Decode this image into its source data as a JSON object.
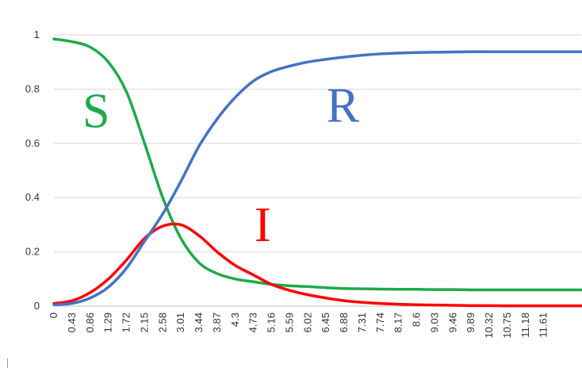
{
  "chart_data": {
    "type": "line",
    "title": "",
    "xlabel": "",
    "ylabel": "",
    "ylim": [
      0,
      1
    ],
    "y_ticks": [
      "0",
      "0.2",
      "0.4",
      "0.6",
      "0.8",
      "1"
    ],
    "x_ticks": [
      "0",
      "0.43",
      "0.86",
      "1.29",
      "1.72",
      "2.15",
      "2.58",
      "3.01",
      "3.44",
      "3.87",
      "4.3",
      "4.73",
      "5.16",
      "5.59",
      "6.02",
      "6.45",
      "6.88",
      "7.31",
      "7.74",
      "8.17",
      "8.6",
      "9.03",
      "9.46",
      "9.89",
      "10.32",
      "10.75",
      "11.18",
      "11.61"
    ],
    "x_range": [
      0,
      12.5
    ],
    "grid": true,
    "legend": "none",
    "x": [
      0,
      0.43,
      0.86,
      1.29,
      1.72,
      2.15,
      2.58,
      3.01,
      3.44,
      3.87,
      4.3,
      4.73,
      5.16,
      5.59,
      6.02,
      6.45,
      6.88,
      7.31,
      7.74,
      8.17,
      8.6,
      9.03,
      9.46,
      9.89,
      10.32,
      10.75,
      11.18,
      11.61,
      12.04,
      12.5
    ],
    "series": [
      {
        "name": "S",
        "color": "#1fa94a",
        "values": [
          0.985,
          0.975,
          0.955,
          0.9,
          0.79,
          0.6,
          0.4,
          0.25,
          0.16,
          0.12,
          0.1,
          0.09,
          0.08,
          0.075,
          0.072,
          0.068,
          0.065,
          0.064,
          0.063,
          0.062,
          0.062,
          0.061,
          0.061,
          0.06,
          0.06,
          0.06,
          0.06,
          0.06,
          0.06,
          0.06
        ]
      },
      {
        "name": "I",
        "color": "#ff0000",
        "values": [
          0.01,
          0.02,
          0.05,
          0.1,
          0.17,
          0.25,
          0.295,
          0.3,
          0.26,
          0.2,
          0.15,
          0.115,
          0.08,
          0.058,
          0.042,
          0.03,
          0.02,
          0.014,
          0.01,
          0.007,
          0.005,
          0.004,
          0.003,
          0.002,
          0.002,
          0.001,
          0.001,
          0.001,
          0.001,
          0.001
        ]
      },
      {
        "name": "R",
        "color": "#4472c4",
        "values": [
          0.005,
          0.01,
          0.03,
          0.07,
          0.14,
          0.24,
          0.34,
          0.46,
          0.59,
          0.69,
          0.77,
          0.83,
          0.865,
          0.885,
          0.9,
          0.91,
          0.918,
          0.925,
          0.93,
          0.933,
          0.935,
          0.936,
          0.937,
          0.938,
          0.938,
          0.938,
          0.938,
          0.938,
          0.938,
          0.938
        ]
      }
    ],
    "annotations": [
      {
        "text": "S",
        "x": 1.0,
        "y": 0.66,
        "color": "#1fa94a"
      },
      {
        "text": "R",
        "x": 6.85,
        "y": 0.68,
        "color": "#4472c4"
      },
      {
        "text": "I",
        "x": 4.95,
        "y": 0.24,
        "color": "#ff0000"
      }
    ]
  }
}
